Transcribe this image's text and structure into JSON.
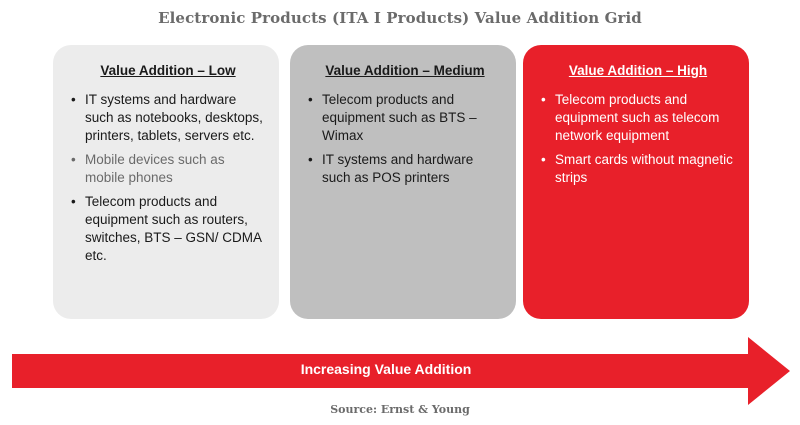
{
  "title": "Electronic Products (ITA I Products) Value Addition Grid",
  "panels": {
    "low": {
      "heading": "Value Addition – Low",
      "items": [
        "IT systems and hardware such as notebooks, desktops, printers, tablets, servers etc.",
        "Mobile devices such as mobile phones",
        "Telecom products and equipment such as routers, switches, BTS – GSN/ CDMA etc."
      ]
    },
    "medium": {
      "heading": "Value Addition – Medium",
      "items": [
        "Telecom products and equipment such as BTS – Wimax",
        "IT systems and hardware such as POS printers"
      ]
    },
    "high": {
      "heading": "Value Addition – High",
      "items": [
        "Telecom products and equipment such as telecom network equipment",
        "Smart cards without magnetic strips"
      ]
    }
  },
  "arrow_label": "Increasing Value Addition",
  "source": "Source: Ernst & Young",
  "colors": {
    "accent_red": "#e8202a",
    "panel_low": "#ececec",
    "panel_medium": "#bfbfbf",
    "title_gray": "#6b6b6b"
  }
}
